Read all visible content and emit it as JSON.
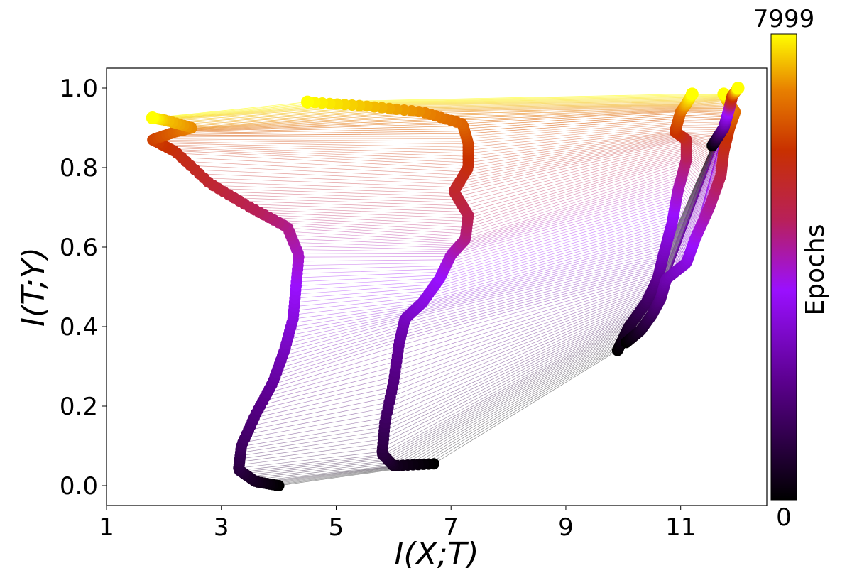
{
  "chart_data": {
    "type": "scatter",
    "title": "",
    "xlabel": "I(X;T)",
    "ylabel": "I(T;Y)",
    "xlim": [
      1,
      12.5
    ],
    "ylim": [
      -0.05,
      1.05
    ],
    "xticks": [
      "1",
      "3",
      "5",
      "7",
      "9",
      "11"
    ],
    "yticks": [
      "0.0",
      "0.2",
      "0.4",
      "0.6",
      "0.8",
      "1.0"
    ],
    "grid": false,
    "colorbar": {
      "label": "Epochs",
      "min_label": "0",
      "max_label": "7999",
      "colormap": "gnuplot"
    },
    "series": [
      {
        "points": [
          [
            4.0,
            0.0
          ],
          [
            3.6,
            0.01
          ],
          [
            3.3,
            0.04
          ],
          [
            3.35,
            0.1
          ],
          [
            3.6,
            0.18
          ],
          [
            3.9,
            0.26
          ],
          [
            4.1,
            0.34
          ],
          [
            4.25,
            0.42
          ],
          [
            4.3,
            0.5
          ],
          [
            4.35,
            0.58
          ],
          [
            4.15,
            0.65
          ],
          [
            3.5,
            0.7
          ],
          [
            2.8,
            0.76
          ],
          [
            2.2,
            0.84
          ],
          [
            1.8,
            0.87
          ],
          [
            2.2,
            0.89
          ],
          [
            2.5,
            0.9
          ],
          [
            2.0,
            0.92
          ],
          [
            1.8,
            0.925
          ]
        ]
      },
      {
        "points": [
          [
            6.7,
            0.055
          ],
          [
            6.0,
            0.05
          ],
          [
            5.8,
            0.08
          ],
          [
            5.85,
            0.16
          ],
          [
            6.0,
            0.26
          ],
          [
            6.1,
            0.36
          ],
          [
            6.2,
            0.42
          ],
          [
            6.5,
            0.46
          ],
          [
            6.8,
            0.52
          ],
          [
            7.0,
            0.58
          ],
          [
            7.25,
            0.62
          ],
          [
            7.3,
            0.68
          ],
          [
            7.05,
            0.74
          ],
          [
            7.3,
            0.8
          ],
          [
            7.3,
            0.86
          ],
          [
            7.2,
            0.91
          ],
          [
            6.5,
            0.94
          ],
          [
            5.5,
            0.955
          ],
          [
            4.5,
            0.965
          ]
        ]
      },
      {
        "points": [
          [
            9.9,
            0.34
          ],
          [
            10.1,
            0.4
          ],
          [
            10.4,
            0.46
          ],
          [
            10.6,
            0.52
          ],
          [
            10.7,
            0.58
          ],
          [
            10.85,
            0.66
          ],
          [
            10.95,
            0.74
          ],
          [
            11.1,
            0.82
          ],
          [
            11.1,
            0.87
          ],
          [
            10.9,
            0.89
          ],
          [
            11.0,
            0.94
          ],
          [
            11.1,
            0.96
          ],
          [
            11.2,
            0.985
          ]
        ]
      },
      {
        "points": [
          [
            10.05,
            0.36
          ],
          [
            10.3,
            0.39
          ],
          [
            10.5,
            0.43
          ],
          [
            10.65,
            0.47
          ],
          [
            10.75,
            0.52
          ],
          [
            11.1,
            0.56
          ],
          [
            11.25,
            0.62
          ],
          [
            11.5,
            0.7
          ],
          [
            11.7,
            0.78
          ],
          [
            11.75,
            0.84
          ],
          [
            11.85,
            0.9
          ],
          [
            11.95,
            0.94
          ],
          [
            11.8,
            0.97
          ],
          [
            11.75,
            0.985
          ]
        ]
      },
      {
        "points": [
          [
            11.55,
            0.855
          ],
          [
            11.75,
            0.9
          ],
          [
            11.85,
            0.95
          ],
          [
            11.9,
            0.98
          ],
          [
            12.0,
            1.0
          ]
        ]
      }
    ]
  }
}
